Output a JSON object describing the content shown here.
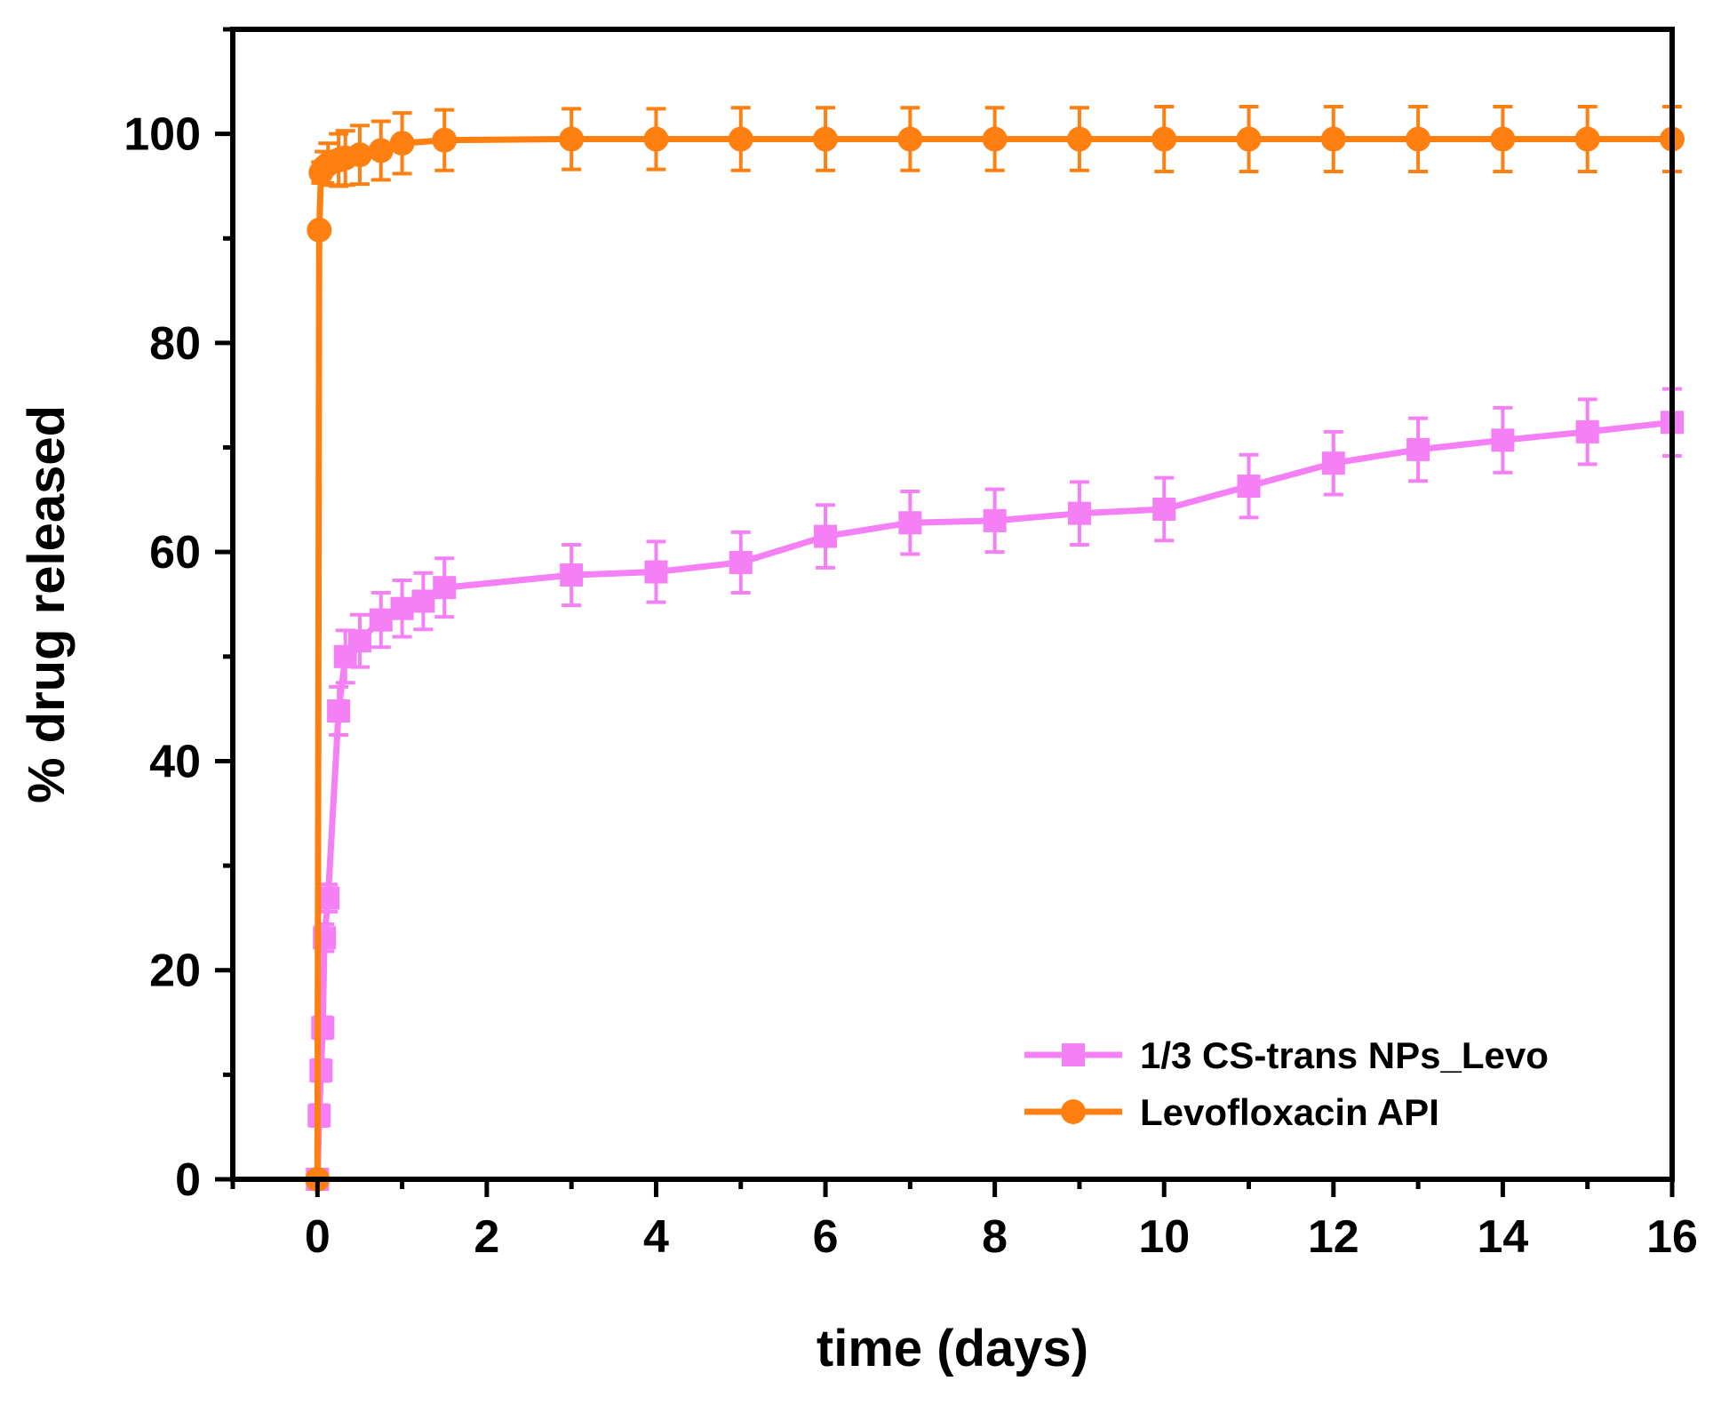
{
  "chart_data": {
    "type": "line",
    "xlabel": "time (days)",
    "ylabel": "% drug released",
    "xlim": [
      -1,
      16
    ],
    "ylim": [
      0,
      110
    ],
    "xticks": [
      0,
      2,
      4,
      6,
      8,
      10,
      12,
      14,
      16
    ],
    "yticks": [
      0,
      20,
      40,
      60,
      80,
      100
    ],
    "legend_position": "bottom-right",
    "series": [
      {
        "name": "1/3 CS-trans NPs_Levo",
        "color": "#f57ff5",
        "marker": "square",
        "points": [
          {
            "x": 0,
            "y": 0,
            "err": 0
          },
          {
            "x": 0.021,
            "y": 6.1,
            "err": 1.0
          },
          {
            "x": 0.042,
            "y": 10.4,
            "err": 1.0
          },
          {
            "x": 0.063,
            "y": 14.5,
            "err": 1.0
          },
          {
            "x": 0.083,
            "y": 23.1,
            "err": 1.3
          },
          {
            "x": 0.125,
            "y": 26.9,
            "err": 1.3
          },
          {
            "x": 0.25,
            "y": 44.8,
            "err": 2.3
          },
          {
            "x": 0.33,
            "y": 50.0,
            "err": 2.5
          },
          {
            "x": 0.5,
            "y": 51.5,
            "err": 2.5
          },
          {
            "x": 0.75,
            "y": 53.5,
            "err": 2.6
          },
          {
            "x": 1.0,
            "y": 54.6,
            "err": 2.7
          },
          {
            "x": 1.25,
            "y": 55.3,
            "err": 2.7
          },
          {
            "x": 1.5,
            "y": 56.6,
            "err": 2.8
          },
          {
            "x": 3,
            "y": 57.8,
            "err": 2.9
          },
          {
            "x": 4,
            "y": 58.1,
            "err": 2.9
          },
          {
            "x": 5,
            "y": 59.0,
            "err": 2.9
          },
          {
            "x": 6,
            "y": 61.5,
            "err": 3.0
          },
          {
            "x": 7,
            "y": 62.8,
            "err": 3.0
          },
          {
            "x": 8,
            "y": 63.0,
            "err": 3.0
          },
          {
            "x": 9,
            "y": 63.7,
            "err": 3.0
          },
          {
            "x": 10,
            "y": 64.1,
            "err": 3.0
          },
          {
            "x": 11,
            "y": 66.3,
            "err": 3.0
          },
          {
            "x": 12,
            "y": 68.5,
            "err": 3.0
          },
          {
            "x": 13,
            "y": 69.8,
            "err": 3.0
          },
          {
            "x": 14,
            "y": 70.7,
            "err": 3.1
          },
          {
            "x": 15,
            "y": 71.5,
            "err": 3.1
          },
          {
            "x": 16,
            "y": 72.4,
            "err": 3.2
          }
        ]
      },
      {
        "name": "Levofloxacin API",
        "color": "#ff8010",
        "marker": "circle",
        "points": [
          {
            "x": 0,
            "y": 0,
            "err": 0
          },
          {
            "x": 0.021,
            "y": 90.8,
            "err": 0.5
          },
          {
            "x": 0.042,
            "y": 96.3,
            "err": 1.0
          },
          {
            "x": 0.083,
            "y": 96.8,
            "err": 1.5
          },
          {
            "x": 0.125,
            "y": 97.1,
            "err": 2.0
          },
          {
            "x": 0.25,
            "y": 97.5,
            "err": 2.5
          },
          {
            "x": 0.33,
            "y": 97.7,
            "err": 2.6
          },
          {
            "x": 0.5,
            "y": 98.0,
            "err": 2.8
          },
          {
            "x": 0.75,
            "y": 98.4,
            "err": 2.8
          },
          {
            "x": 1.0,
            "y": 99.1,
            "err": 2.9
          },
          {
            "x": 1.5,
            "y": 99.4,
            "err": 2.9
          },
          {
            "x": 3,
            "y": 99.5,
            "err": 2.9
          },
          {
            "x": 4,
            "y": 99.5,
            "err": 2.9
          },
          {
            "x": 5,
            "y": 99.5,
            "err": 3.0
          },
          {
            "x": 6,
            "y": 99.5,
            "err": 3.0
          },
          {
            "x": 7,
            "y": 99.5,
            "err": 3.0
          },
          {
            "x": 8,
            "y": 99.5,
            "err": 3.0
          },
          {
            "x": 9,
            "y": 99.5,
            "err": 3.0
          },
          {
            "x": 10,
            "y": 99.5,
            "err": 3.1
          },
          {
            "x": 11,
            "y": 99.5,
            "err": 3.1
          },
          {
            "x": 12,
            "y": 99.5,
            "err": 3.1
          },
          {
            "x": 13,
            "y": 99.5,
            "err": 3.1
          },
          {
            "x": 14,
            "y": 99.5,
            "err": 3.1
          },
          {
            "x": 15,
            "y": 99.5,
            "err": 3.1
          },
          {
            "x": 16,
            "y": 99.5,
            "err": 3.1
          }
        ]
      }
    ]
  }
}
